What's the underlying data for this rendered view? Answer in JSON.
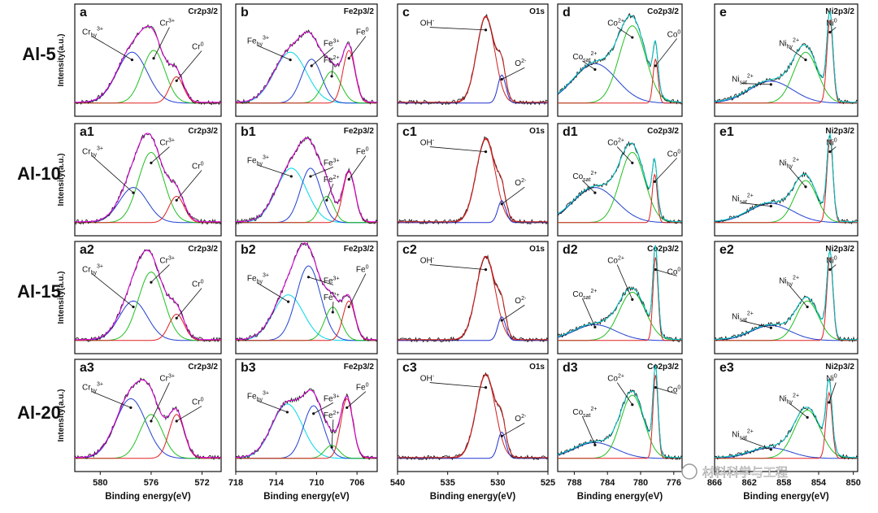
{
  "rows": [
    "Al-5",
    "Al-10",
    "Al-15",
    "Al-20"
  ],
  "y_axis_label": "Intensity(a.u.)",
  "x_axis_label": "Binding energy(eV)",
  "watermark": "材料科学与工程",
  "colors": {
    "measured": "#222222",
    "envelope": "#e000e0",
    "oh": "#d02020",
    "o": "#2030d0",
    "cr_hy": "#2040d0",
    "cr3": "#20c020",
    "cr0": "#e02020",
    "fe_hy": "#00d8e8",
    "fe3": "#2040d0",
    "fe2": "#20c020",
    "fe0": "#e02020",
    "co_sat": "#2040d0",
    "co2": "#20c020",
    "co0": "#e02020",
    "ni_sat": "#2040d0",
    "ni2": "#20c020",
    "ni0": "#e02020",
    "fit_cyan": "#00c8c8"
  },
  "chart_data": [
    {
      "id": "a",
      "type": "line",
      "title": "Cr2p3/2",
      "row": 0,
      "col": 0,
      "xlim": [
        582,
        570.5
      ],
      "xticks": [
        580,
        576,
        572
      ],
      "series": [
        {
          "peak": "Cr_hy 3+",
          "center": 577.5,
          "height": 0.58,
          "width": 1.2
        },
        {
          "peak": "Cr 3+",
          "center": 575.8,
          "height": 0.6,
          "width": 0.9
        },
        {
          "peak": "Cr 0",
          "center": 574.0,
          "height": 0.3,
          "width": 0.55
        }
      ],
      "annotations": [
        {
          "text": "Cr",
          "sub": "hy",
          "sup": "3+"
        },
        {
          "text": "Cr",
          "sup": "3+"
        },
        {
          "text": "Cr",
          "sup": "0"
        }
      ]
    },
    {
      "id": "b",
      "type": "line",
      "title": "Fe2p3/2",
      "row": 0,
      "col": 1,
      "xlim": [
        718,
        704
      ],
      "xticks": [
        718,
        714,
        710,
        706
      ],
      "series": [
        {
          "peak": "Fe_hy 3+",
          "center": 712.6,
          "height": 0.58,
          "width": 1.6
        },
        {
          "peak": "Fe 3+",
          "center": 710.5,
          "height": 0.5,
          "width": 1.0
        },
        {
          "peak": "Fe 2+",
          "center": 708.5,
          "height": 0.36,
          "width": 0.9
        },
        {
          "peak": "Fe 0",
          "center": 706.8,
          "height": 0.6,
          "width": 0.6
        }
      ],
      "annotations": [
        {
          "text": "Fe",
          "sub": "hy",
          "sup": "3+"
        },
        {
          "text": "Fe",
          "sup": "3+"
        },
        {
          "text": "Fe",
          "sup": "2+"
        },
        {
          "text": "Fe",
          "sup": "0"
        }
      ]
    },
    {
      "id": "c",
      "type": "line",
      "title": "O1s",
      "row": 0,
      "col": 2,
      "xlim": [
        540,
        525
      ],
      "xticks": [
        540,
        535,
        530,
        525
      ],
      "series": [
        {
          "peak": "OH-",
          "center": 531.2,
          "height": 0.98,
          "width": 0.9
        },
        {
          "peak": "O2-",
          "center": 529.6,
          "height": 0.32,
          "width": 0.4
        }
      ],
      "annotations": [
        {
          "text": "OH",
          "sup": "-"
        },
        {
          "text": "O",
          "sup": "2-"
        }
      ]
    },
    {
      "id": "d",
      "type": "line",
      "title": "Co2p3/2",
      "row": 0,
      "col": 3,
      "xlim": [
        790,
        775
      ],
      "xticks": [
        788,
        784,
        780,
        776
      ],
      "series": [
        {
          "peak": "Co_sat 2+",
          "center": 785.5,
          "height": 0.45,
          "width": 2.6
        },
        {
          "peak": "Co 2+",
          "center": 781.0,
          "height": 0.88,
          "width": 1.6
        },
        {
          "peak": "Co 0",
          "center": 778.2,
          "height": 0.5,
          "width": 0.3
        }
      ],
      "annotations": [
        {
          "text": "Co",
          "sub": "sat",
          "sup": "2+"
        },
        {
          "text": "Co",
          "sup": "2+"
        },
        {
          "text": "Co",
          "sup": "0"
        }
      ]
    },
    {
      "id": "e",
      "type": "line",
      "title": "Ni2p3/2",
      "row": 0,
      "col": 4,
      "xlim": [
        866,
        849.5
      ],
      "xticks": [
        866,
        862,
        858,
        854,
        850
      ],
      "series": [
        {
          "peak": "Ni_sat 2+",
          "center": 859.5,
          "height": 0.25,
          "width": 2.5
        },
        {
          "peak": "Ni_hy 2+",
          "center": 855.5,
          "height": 0.58,
          "width": 1.4
        },
        {
          "peak": "Ni 0",
          "center": 852.7,
          "height": 0.95,
          "width": 0.35
        }
      ],
      "annotations": [
        {
          "text": "Ni",
          "sub": "sat",
          "sup": "2+"
        },
        {
          "text": "Ni",
          "sub": "hy",
          "sup": "2+"
        },
        {
          "text": "Ni",
          "sup": "0"
        }
      ]
    },
    {
      "id": "a1",
      "type": "line",
      "title": "Cr2p3/2",
      "row": 1,
      "col": 0,
      "xlim": [
        582,
        570.5
      ],
      "xticks": [
        580,
        576,
        572
      ],
      "series": [
        {
          "peak": "Cr_hy 3+",
          "center": 577.4,
          "height": 0.4,
          "width": 1.1
        },
        {
          "peak": "Cr 3+",
          "center": 576.0,
          "height": 0.8,
          "width": 1.0
        },
        {
          "peak": "Cr 0",
          "center": 574.0,
          "height": 0.3,
          "width": 0.6
        }
      ],
      "annotations": [
        {
          "text": "Cr",
          "sub": "hy",
          "sup": "3+"
        },
        {
          "text": "Cr",
          "sup": "3+"
        },
        {
          "text": "Cr",
          "sup": "0"
        }
      ]
    },
    {
      "id": "b1",
      "type": "line",
      "title": "Fe2p3/2",
      "row": 1,
      "col": 1,
      "xlim": [
        718,
        704
      ],
      "xticks": [
        718,
        714,
        710,
        706
      ],
      "series": [
        {
          "peak": "Fe_hy 3+",
          "center": 712.5,
          "height": 0.62,
          "width": 1.5
        },
        {
          "peak": "Fe 3+",
          "center": 710.6,
          "height": 0.62,
          "width": 1.0
        },
        {
          "peak": "Fe 2+",
          "center": 709.0,
          "height": 0.3,
          "width": 0.7
        },
        {
          "peak": "Fe 0",
          "center": 706.8,
          "height": 0.58,
          "width": 0.6
        }
      ],
      "annotations": [
        {
          "text": "Fe",
          "sub": "hy",
          "sup": "3+"
        },
        {
          "text": "Fe",
          "sup": "3+"
        },
        {
          "text": "Fe",
          "sup": "2+"
        },
        {
          "text": "Fe",
          "sup": "0"
        }
      ]
    },
    {
      "id": "c1",
      "type": "line",
      "title": "O1s",
      "row": 1,
      "col": 2,
      "xlim": [
        540,
        525
      ],
      "xticks": [
        540,
        535,
        530,
        525
      ],
      "series": [
        {
          "peak": "OH-",
          "center": 531.2,
          "height": 0.95,
          "width": 0.95
        },
        {
          "peak": "O2-",
          "center": 529.6,
          "height": 0.25,
          "width": 0.4
        }
      ],
      "annotations": [
        {
          "text": "OH",
          "sup": "-"
        },
        {
          "text": "O",
          "sup": "2-"
        }
      ]
    },
    {
      "id": "d1",
      "type": "line",
      "title": "Co2p3/2",
      "row": 1,
      "col": 3,
      "xlim": [
        790,
        775
      ],
      "xticks": [
        788,
        784,
        780,
        776
      ],
      "series": [
        {
          "peak": "Co_sat 2+",
          "center": 785.5,
          "height": 0.4,
          "width": 2.6
        },
        {
          "peak": "Co 2+",
          "center": 781.0,
          "height": 0.8,
          "width": 1.5
        },
        {
          "peak": "Co 0",
          "center": 778.3,
          "height": 0.55,
          "width": 0.3
        }
      ],
      "annotations": [
        {
          "text": "Co",
          "sub": "sat",
          "sup": "2+"
        },
        {
          "text": "Co",
          "sup": "2+"
        },
        {
          "text": "Co",
          "sup": "0"
        }
      ]
    },
    {
      "id": "e1",
      "type": "line",
      "title": "Ni2p3/2",
      "row": 1,
      "col": 4,
      "xlim": [
        866,
        849.5
      ],
      "xticks": [
        866,
        862,
        858,
        854,
        850
      ],
      "series": [
        {
          "peak": "Ni_sat 2+",
          "center": 859.5,
          "height": 0.22,
          "width": 2.5
        },
        {
          "peak": "Ni_hy 2+",
          "center": 855.5,
          "height": 0.48,
          "width": 1.3
        },
        {
          "peak": "Ni 0",
          "center": 852.7,
          "height": 0.95,
          "width": 0.35
        }
      ],
      "annotations": [
        {
          "text": "Ni",
          "sub": "sat",
          "sup": "2+"
        },
        {
          "text": "Ni",
          "sub": "hy",
          "sup": "2+"
        },
        {
          "text": "Ni",
          "sup": "0"
        }
      ]
    },
    {
      "id": "a2",
      "type": "line",
      "title": "Cr2p3/2",
      "row": 2,
      "col": 0,
      "xlim": [
        582,
        570.5
      ],
      "xticks": [
        580,
        576,
        572
      ],
      "series": [
        {
          "peak": "Cr_hy 3+",
          "center": 577.4,
          "height": 0.45,
          "width": 1.1
        },
        {
          "peak": "Cr 3+",
          "center": 576.0,
          "height": 0.78,
          "width": 1.0
        },
        {
          "peak": "Cr 0",
          "center": 574.0,
          "height": 0.3,
          "width": 0.6
        }
      ],
      "annotations": [
        {
          "text": "Cr",
          "sub": "hy",
          "sup": "3+"
        },
        {
          "text": "Cr",
          "sup": "3+"
        },
        {
          "text": "Cr",
          "sup": "0"
        }
      ]
    },
    {
      "id": "b2",
      "type": "line",
      "title": "Fe2p3/2",
      "row": 2,
      "col": 1,
      "xlim": [
        718,
        704
      ],
      "xticks": [
        718,
        714,
        710,
        706
      ],
      "series": [
        {
          "peak": "Fe_hy 3+",
          "center": 712.8,
          "height": 0.52,
          "width": 1.5
        },
        {
          "peak": "Fe 3+",
          "center": 710.8,
          "height": 0.85,
          "width": 1.2
        },
        {
          "peak": "Fe 2+",
          "center": 708.4,
          "height": 0.38,
          "width": 0.8
        },
        {
          "peak": "Fe 0",
          "center": 706.8,
          "height": 0.45,
          "width": 0.6
        }
      ],
      "annotations": [
        {
          "text": "Fe",
          "sub": "hy",
          "sup": "3+"
        },
        {
          "text": "Fe",
          "sup": "3+"
        },
        {
          "text": "Fe",
          "sup": "2+"
        },
        {
          "text": "Fe",
          "sup": "0"
        }
      ]
    },
    {
      "id": "c2",
      "type": "line",
      "title": "O1s",
      "row": 2,
      "col": 2,
      "xlim": [
        540,
        525
      ],
      "xticks": [
        540,
        535,
        530,
        525
      ],
      "series": [
        {
          "peak": "OH-",
          "center": 531.2,
          "height": 0.95,
          "width": 0.95
        },
        {
          "peak": "O2-",
          "center": 529.6,
          "height": 0.27,
          "width": 0.4
        }
      ],
      "annotations": [
        {
          "text": "OH",
          "sup": "-"
        },
        {
          "text": "O",
          "sup": "2-"
        }
      ]
    },
    {
      "id": "d2",
      "type": "line",
      "title": "Co2p3/2",
      "row": 2,
      "col": 3,
      "xlim": [
        790,
        775
      ],
      "xticks": [
        788,
        784,
        780,
        776
      ],
      "series": [
        {
          "peak": "Co_sat 2+",
          "center": 785.5,
          "height": 0.18,
          "width": 2.5
        },
        {
          "peak": "Co 2+",
          "center": 781.0,
          "height": 0.55,
          "width": 1.6
        },
        {
          "peak": "Co 0",
          "center": 778.2,
          "height": 0.95,
          "width": 0.3
        }
      ],
      "annotations": [
        {
          "text": "Co",
          "sub": "sat",
          "sup": "2+"
        },
        {
          "text": "Co",
          "sup": "2+"
        },
        {
          "text": "Co",
          "sup": "0"
        }
      ]
    },
    {
      "id": "e2",
      "type": "line",
      "title": "Ni2p3/2",
      "row": 2,
      "col": 4,
      "xlim": [
        866,
        849.5
      ],
      "xticks": [
        866,
        862,
        858,
        854,
        850
      ],
      "series": [
        {
          "peak": "Ni_sat 2+",
          "center": 859.5,
          "height": 0.17,
          "width": 2.3
        },
        {
          "peak": "Ni_hy 2+",
          "center": 855.3,
          "height": 0.45,
          "width": 1.3
        },
        {
          "peak": "Ni 0",
          "center": 852.7,
          "height": 0.95,
          "width": 0.35
        }
      ],
      "annotations": [
        {
          "text": "Ni",
          "sub": "sat",
          "sup": "2+"
        },
        {
          "text": "Ni",
          "sub": "hy",
          "sup": "2+"
        },
        {
          "text": "Ni",
          "sup": "0"
        }
      ]
    },
    {
      "id": "a3",
      "type": "line",
      "title": "Cr2p3/2",
      "row": 3,
      "col": 0,
      "xlim": [
        582,
        570.5
      ],
      "xticks": [
        580,
        576,
        572
      ],
      "series": [
        {
          "peak": "Cr_hy 3+",
          "center": 577.6,
          "height": 0.68,
          "width": 1.2
        },
        {
          "peak": "Cr 3+",
          "center": 576.0,
          "height": 0.5,
          "width": 0.9
        },
        {
          "peak": "Cr 0",
          "center": 574.0,
          "height": 0.5,
          "width": 0.6
        }
      ],
      "annotations": [
        {
          "text": "Cr",
          "sub": "hy",
          "sup": "3+"
        },
        {
          "text": "Cr",
          "sup": "3+"
        },
        {
          "text": "Cr",
          "sup": "0"
        }
      ]
    },
    {
      "id": "b3",
      "type": "line",
      "title": "Fe2p3/2",
      "row": 3,
      "col": 1,
      "xlim": [
        718,
        704
      ],
      "xticks": [
        718,
        714,
        710,
        706
      ],
      "series": [
        {
          "peak": "Fe_hy 3+",
          "center": 712.9,
          "height": 0.62,
          "width": 1.5
        },
        {
          "peak": "Fe 3+",
          "center": 710.3,
          "height": 0.6,
          "width": 1.0
        },
        {
          "peak": "Fe 2+",
          "center": 708.5,
          "height": 0.15,
          "width": 0.7
        },
        {
          "peak": "Fe 0",
          "center": 707.0,
          "height": 0.68,
          "width": 0.6
        }
      ],
      "annotations": [
        {
          "text": "Fe",
          "sub": "hy",
          "sup": "3+"
        },
        {
          "text": "Fe",
          "sup": "3+"
        },
        {
          "text": "Fe",
          "sup": "2+"
        },
        {
          "text": "Fe",
          "sup": "0"
        }
      ]
    },
    {
      "id": "c3",
      "type": "line",
      "title": "O1s",
      "row": 3,
      "col": 2,
      "xlim": [
        540,
        525
      ],
      "xticks": [
        540,
        535,
        530,
        525
      ],
      "series": [
        {
          "peak": "OH-",
          "center": 531.2,
          "height": 0.95,
          "width": 0.95
        },
        {
          "peak": "O2-",
          "center": 529.6,
          "height": 0.3,
          "width": 0.4
        }
      ],
      "annotations": [
        {
          "text": "OH",
          "sup": "-"
        },
        {
          "text": "O",
          "sup": "2-"
        }
      ]
    },
    {
      "id": "d3",
      "type": "line",
      "title": "Co2p3/2",
      "row": 3,
      "col": 3,
      "xlim": [
        790,
        775
      ],
      "xticks": [
        788,
        784,
        780,
        776
      ],
      "series": [
        {
          "peak": "Co_sat 2+",
          "center": 785.5,
          "height": 0.18,
          "width": 2.5
        },
        {
          "peak": "Co 2+",
          "center": 781.0,
          "height": 0.72,
          "width": 1.4
        },
        {
          "peak": "Co 0",
          "center": 778.2,
          "height": 0.95,
          "width": 0.3
        }
      ],
      "annotations": [
        {
          "text": "Co",
          "sub": "sat",
          "sup": "2+"
        },
        {
          "text": "Co",
          "sup": "2+"
        },
        {
          "text": "Co",
          "sup": "0"
        }
      ]
    },
    {
      "id": "e3",
      "type": "line",
      "title": "Ni2p3/2",
      "row": 3,
      "col": 4,
      "xlim": [
        866,
        849.5
      ],
      "xticks": [
        866,
        862,
        858,
        854,
        850
      ],
      "series": [
        {
          "peak": "Ni_sat 2+",
          "center": 859.5,
          "height": 0.12,
          "width": 2.3
        },
        {
          "peak": "Ni_hy 2+",
          "center": 855.3,
          "height": 0.55,
          "width": 1.5
        },
        {
          "peak": "Ni 0",
          "center": 852.8,
          "height": 0.75,
          "width": 0.35
        }
      ],
      "annotations": [
        {
          "text": "Ni",
          "sub": "sat",
          "sup": "2+"
        },
        {
          "text": "Ni",
          "sub": "hy",
          "sup": "2+"
        },
        {
          "text": "Ni",
          "sup": "0"
        }
      ]
    }
  ]
}
